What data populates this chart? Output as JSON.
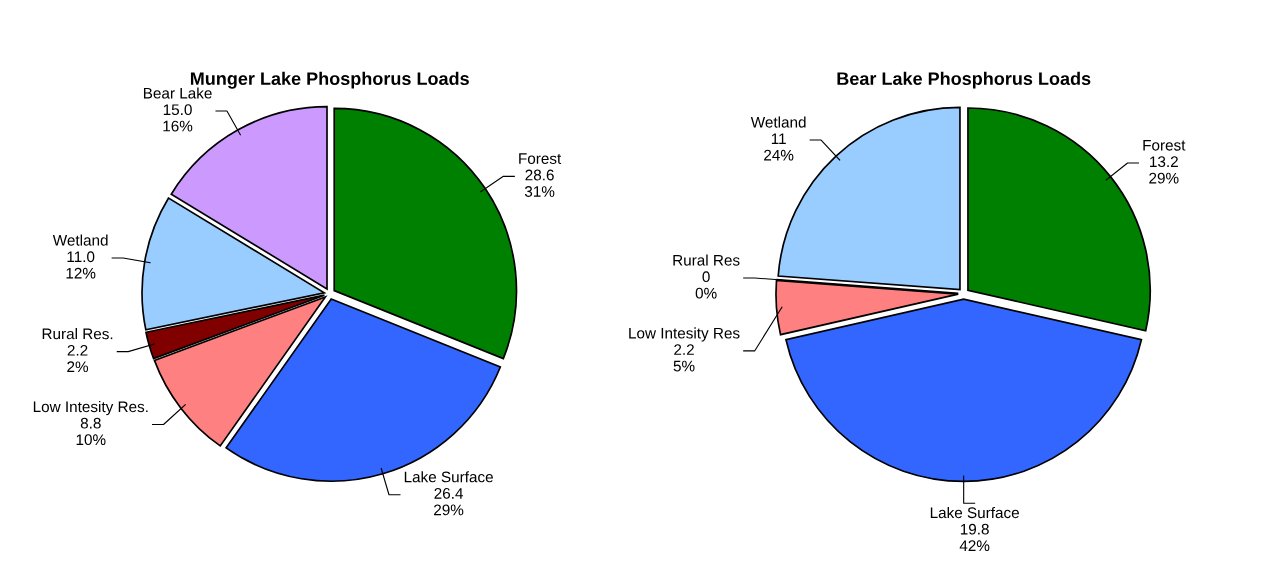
{
  "chart_data": [
    {
      "type": "pie",
      "title": "Munger Lake Phosphorus Loads",
      "categories": [
        "Forest",
        "Lake Surface",
        "Low Intesity Res.",
        "Rural Res.",
        "Wetland",
        "Bear Lake"
      ],
      "values": [
        28.6,
        26.4,
        8.8,
        2.2,
        11.0,
        15.0
      ],
      "value_labels": [
        "28.6\n31%",
        "26.4\n29%",
        "8.8\n10%",
        "2.2\n2%",
        "11.0\n12%",
        "15.0\n16%"
      ],
      "colors": [
        "#008000",
        "#3366ff",
        "#ff8080",
        "#800000",
        "#99ccff",
        "#cc99ff"
      ]
    },
    {
      "type": "pie",
      "title": "Bear Lake Phosphorus Loads",
      "categories": [
        "Forest",
        "Lake Surface",
        "Low Intesity Res",
        "Rural Res",
        "Wetland"
      ],
      "values": [
        13.2,
        19.8,
        2.2,
        0,
        11
      ],
      "value_labels": [
        "13.2\n29%",
        "19.8\n42%",
        "2.2\n5%",
        "0\n0%",
        "11\n24%"
      ],
      "colors": [
        "#008000",
        "#3366ff",
        "#ff8080",
        "#800000",
        "#99ccff"
      ]
    }
  ]
}
